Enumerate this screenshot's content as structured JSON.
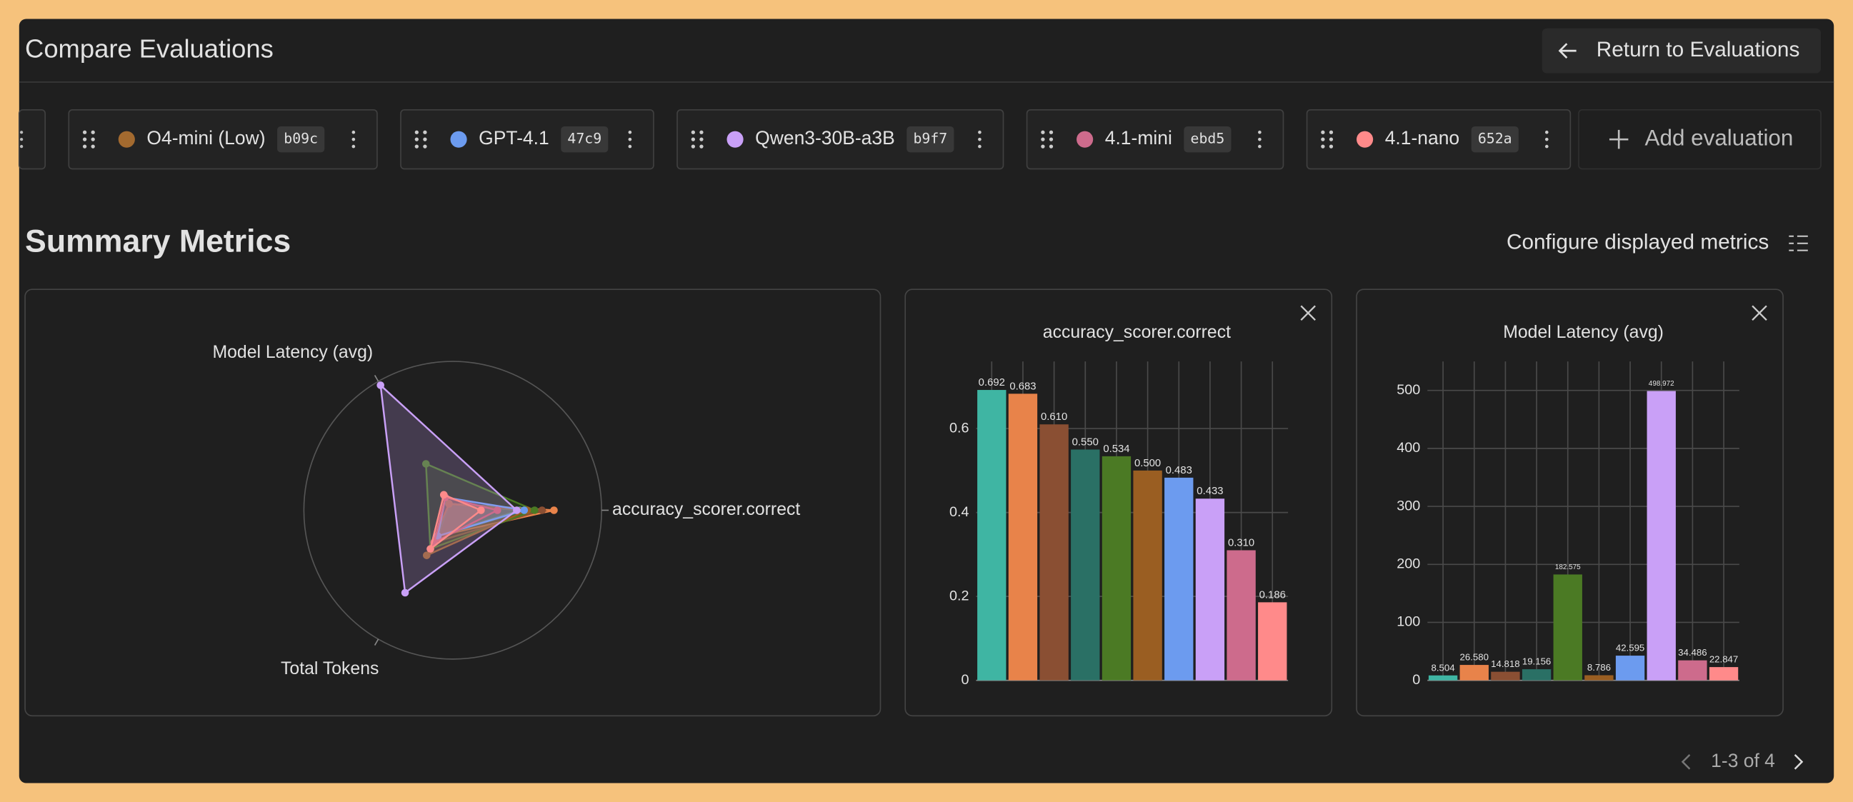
{
  "header": {
    "title": "Compare Evaluations",
    "button": "Return to Evaluations"
  },
  "evaluations": [
    {
      "name": "O4-mini (Low)",
      "id": "b09c",
      "color": "#a36a2f"
    },
    {
      "name": "GPT-4.1",
      "id": "47c9",
      "color": "#6c9bef"
    },
    {
      "name": "Qwen3-30B-a3B",
      "id": "b9f7",
      "color": "#c9a0f7"
    },
    {
      "name": "4.1-mini",
      "id": "ebd5",
      "color": "#cd6b8c"
    },
    {
      "name": "4.1-nano",
      "id": "652a",
      "color": "#ff8a8a"
    }
  ],
  "add_evaluation": "Add evaluation",
  "summary": {
    "title": "Summary Metrics",
    "configure": "Configure displayed metrics"
  },
  "pagination": "1-3 of 4",
  "chart_data": [
    {
      "type": "radar",
      "axes": [
        "accuracy_scorer.correct",
        "Model Latency (avg)",
        "Total Tokens"
      ],
      "rlim": [
        0,
        1
      ],
      "grid": true,
      "series": [
        {
          "color": "#3fb5a3",
          "values": [
            0.45,
            0.05,
            0.2
          ]
        },
        {
          "color": "#e8834a",
          "values": [
            0.68,
            0.05,
            0.2
          ]
        },
        {
          "color": "#8a4f33",
          "values": [
            0.6,
            0.05,
            0.25
          ]
        },
        {
          "color": "#2a7065",
          "values": [
            0.5,
            0.05,
            0.2
          ]
        },
        {
          "color": "#4b7a24",
          "values": [
            0.55,
            0.36,
            0.3
          ]
        },
        {
          "color": "#9a5e22",
          "values": [
            0.5,
            0.05,
            0.35
          ]
        },
        {
          "color": "#6c9bef",
          "values": [
            0.48,
            0.1,
            0.2
          ]
        },
        {
          "color": "#c9a0f7",
          "values": [
            0.43,
            0.97,
            0.64
          ]
        },
        {
          "color": "#cd6b8c",
          "values": [
            0.3,
            0.1,
            0.25
          ]
        },
        {
          "color": "#ff8a8a",
          "values": [
            0.19,
            0.12,
            0.3
          ]
        }
      ]
    },
    {
      "type": "bar",
      "title": "accuracy_scorer.correct",
      "values": [
        0.692,
        0.683,
        0.61,
        0.55,
        0.534,
        0.5,
        0.483,
        0.433,
        0.31,
        0.186
      ],
      "value_labels": [
        "0.692",
        "0.683",
        "0.610",
        "0.550",
        "0.534",
        "0.500",
        "0.483",
        "0.433",
        "0.310",
        "0.186"
      ],
      "colors": [
        "#3fb5a3",
        "#e8834a",
        "#8a4f33",
        "#2a7065",
        "#4b7a24",
        "#9a5e22",
        "#6c9bef",
        "#c9a0f7",
        "#cd6b8c",
        "#ff8a8a"
      ],
      "ylim": [
        0,
        0.76
      ],
      "yticks": [
        0,
        0.2,
        0.4,
        0.6
      ],
      "grid": true
    },
    {
      "type": "bar",
      "title": "Model Latency (avg)",
      "values": [
        8.504,
        26.58,
        14.818,
        19.156,
        182.575,
        8.786,
        42.595,
        498.972,
        34.486,
        22.847
      ],
      "value_labels": [
        "8.504",
        "26.580",
        "14.818",
        "19.156",
        "182.575",
        "8.786",
        "42.595",
        "498.972",
        "34.486",
        "22.847"
      ],
      "colors": [
        "#3fb5a3",
        "#e8834a",
        "#8a4f33",
        "#2a7065",
        "#4b7a24",
        "#9a5e22",
        "#6c9bef",
        "#c9a0f7",
        "#cd6b8c",
        "#ff8a8a"
      ],
      "ylim": [
        0,
        550
      ],
      "yticks": [
        0,
        100,
        200,
        300,
        400,
        500
      ],
      "grid": true
    }
  ]
}
